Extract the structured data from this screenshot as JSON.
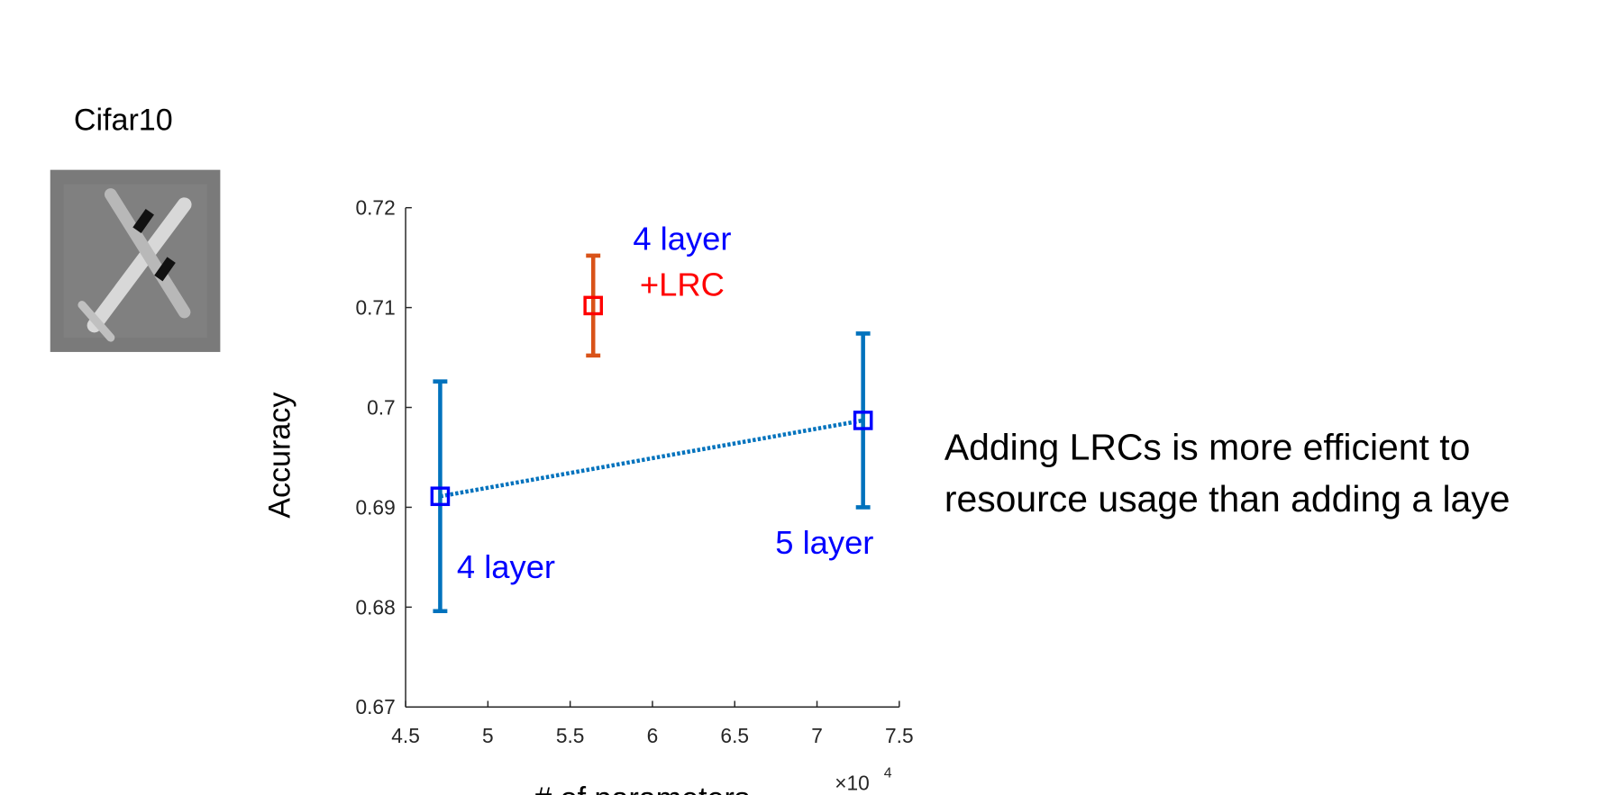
{
  "chart_data": {
    "type": "errorbar",
    "title": "Cifar10",
    "xlabel": "# of parameters",
    "ylabel": "Accuracy",
    "x_scale": {
      "base": "×10",
      "exponent": "4"
    },
    "xlim": [
      4.5,
      7.5
    ],
    "xticks": [
      4.5,
      5,
      5.5,
      6,
      6.5,
      7,
      7.5
    ],
    "ylim": [
      0.67,
      0.72
    ],
    "yticks": [
      0.67,
      0.68,
      0.69,
      0.7,
      0.71,
      0.72
    ],
    "series": [
      {
        "color": "#0072BD",
        "marker_color": "#0000ff",
        "line_style": "dotted",
        "x": [
          4.71,
          7.28
        ],
        "values": [
          0.6911,
          0.6987
        ],
        "errors": [
          0.0115,
          0.0087
        ]
      },
      {
        "color": "#D95319",
        "marker_color": "#ff0000",
        "x": [
          5.64
        ],
        "values": [
          0.7102
        ],
        "errors": [
          0.005
        ]
      }
    ],
    "annotations": [
      {
        "text": "4 layer",
        "color": "#0000ff"
      },
      {
        "text": "5 layer",
        "color": "#0000ff"
      },
      {
        "text": "4 layer",
        "color": "#0000ff"
      },
      {
        "text": "+LRC",
        "color": "#ff0000"
      }
    ],
    "side_note": [
      "Adding LRCs is more efficient to",
      "resource usage than adding a laye"
    ]
  }
}
